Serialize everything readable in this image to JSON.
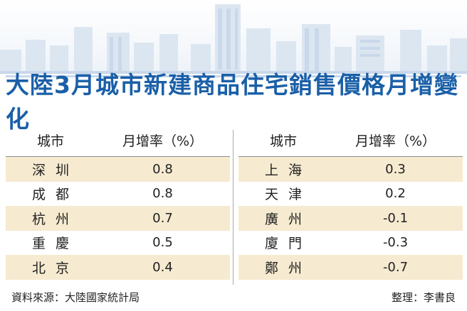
{
  "title": "大陸3月城市新建商品住宅銷售價格月增變化",
  "left_table": {
    "header": {
      "city": "城市",
      "rate": "月增率（%）"
    },
    "rows": [
      {
        "city": "深圳",
        "rate": "0.8"
      },
      {
        "city": "成都",
        "rate": "0.8"
      },
      {
        "city": "杭州",
        "rate": "0.7"
      },
      {
        "city": "重慶",
        "rate": "0.5"
      },
      {
        "city": "北京",
        "rate": "0.4"
      }
    ]
  },
  "right_table": {
    "header": {
      "city": "城市",
      "rate": "月增率（%）"
    },
    "rows": [
      {
        "city": "上海",
        "rate": "0.3"
      },
      {
        "city": "天津",
        "rate": "0.2"
      },
      {
        "city": "廣州",
        "rate": "-0.1"
      },
      {
        "city": "廈門",
        "rate": "-0.3"
      },
      {
        "city": "鄭州",
        "rate": "-0.7"
      }
    ]
  },
  "footer": {
    "source": "資料來源：大陸國家統計局",
    "editor": "整理：李書良"
  },
  "colors": {
    "title": "#1a5fa8",
    "row_shade": "#f6ead0",
    "skyline": "#dce6f1"
  }
}
